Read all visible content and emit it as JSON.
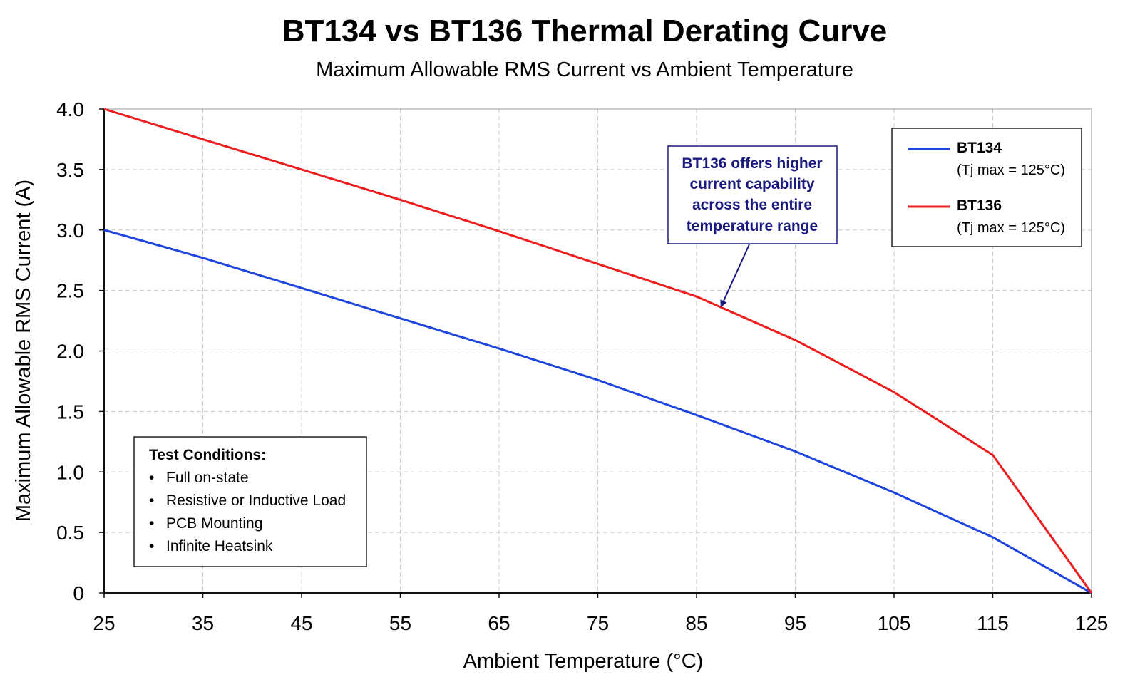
{
  "chart_data": {
    "type": "line",
    "title": "BT134 vs BT136 Thermal Derating Curve",
    "subtitle": "Maximum Allowable RMS Current vs Ambient Temperature",
    "xlabel": "Ambient Temperature (°C)",
    "ylabel": "Maximum Allowable RMS Current (A)",
    "xlim": [
      25,
      125
    ],
    "ylim": [
      0,
      4
    ],
    "x_ticks": [
      25,
      35,
      45,
      55,
      65,
      75,
      85,
      95,
      105,
      115,
      125
    ],
    "x_tick_labels": [
      "25",
      "35",
      "45",
      "55",
      "65",
      "75",
      "85",
      "95",
      "105",
      "115",
      "125"
    ],
    "y_ticks": [
      0,
      0.5,
      1.0,
      1.5,
      2.0,
      2.5,
      3.0,
      3.5,
      4.0
    ],
    "y_tick_labels": [
      "0",
      "0.5",
      "1.0",
      "1.5",
      "2.0",
      "2.5",
      "3.0",
      "3.5",
      "4.0"
    ],
    "grid": true,
    "legend_position": "top-right",
    "x": [
      25,
      35,
      45,
      55,
      65,
      75,
      85,
      95,
      105,
      115,
      125
    ],
    "series": [
      {
        "name": "BT134",
        "note": "(Tj max = 125°C)",
        "color": "#1f45e0",
        "values": [
          3.0,
          2.77,
          2.52,
          2.27,
          2.02,
          1.76,
          1.47,
          1.17,
          0.83,
          0.46,
          0.0
        ]
      },
      {
        "name": "BT136",
        "note": "(Tj max = 125°C)",
        "color": "#ee1c1c",
        "values": [
          4.0,
          3.75,
          3.5,
          3.25,
          2.99,
          2.72,
          2.45,
          2.09,
          1.66,
          1.14,
          0.0
        ]
      }
    ],
    "annotation": {
      "lines": [
        "BT136 offers higher",
        "current capability",
        "across the entire",
        "temperature range"
      ],
      "color": "#1a1a80",
      "points_to": {
        "series": "BT136",
        "x": 87.5,
        "y": 2.37
      }
    },
    "conditions_box": {
      "title": "Test Conditions:",
      "items": [
        "Full on-state",
        "Resistive or Inductive Load",
        "PCB Mounting",
        "Infinite Heatsink"
      ]
    }
  }
}
